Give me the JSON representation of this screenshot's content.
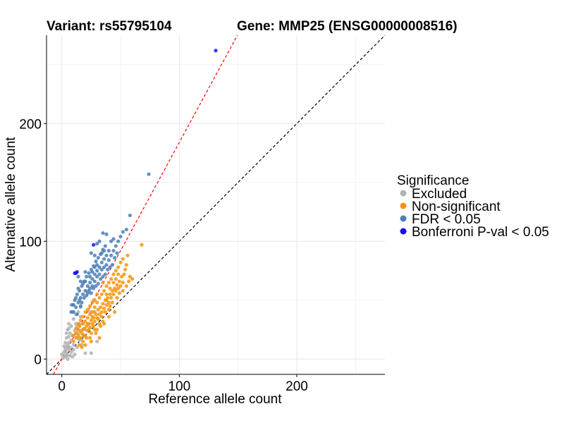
{
  "chart_data": {
    "type": "scatter",
    "title_left": "Variant: rs55795104",
    "title_right": "Gene: MMP25 (ENSG00000008516)",
    "xlabel": "Reference allele count",
    "ylabel": "Alternative allele count",
    "xlim": [
      -13,
      275
    ],
    "ylim": [
      -13,
      275
    ],
    "x_ticks": [
      0,
      100,
      200
    ],
    "y_ticks": [
      0,
      100,
      200
    ],
    "x_tick_labels": [
      "0",
      "100",
      "200"
    ],
    "y_tick_labels": [
      "0",
      "100",
      "200"
    ],
    "grid": true,
    "legend": {
      "title": "Significance",
      "position": "right",
      "entries": [
        {
          "label": "Excluded",
          "color": "#b3b3b3"
        },
        {
          "label": "Non-significant",
          "color": "#f7940c"
        },
        {
          "label": "FDR < 0.05",
          "color": "#4a7fb5"
        },
        {
          "label": "Bonferroni P-val < 0.05",
          "color": "#1010ee"
        }
      ]
    },
    "reference_lines": [
      {
        "name": "identity",
        "slope": 1,
        "intercept": 0,
        "color": "#000000",
        "style": "dashed"
      },
      {
        "name": "fitted-ratio",
        "slope": 1.84,
        "intercept": 0,
        "color": "#ff0000",
        "style": "dashed"
      }
    ],
    "series": [
      {
        "name": "Excluded",
        "color": "#b3b3b3",
        "points": [
          [
            2,
            3
          ],
          [
            3,
            2
          ],
          [
            4,
            5
          ],
          [
            5,
            3
          ],
          [
            6,
            8
          ],
          [
            2,
            6
          ],
          [
            7,
            10
          ],
          [
            8,
            6
          ],
          [
            3,
            9
          ],
          [
            5,
            12
          ],
          [
            6,
            14
          ],
          [
            4,
            18
          ],
          [
            8,
            16
          ],
          [
            10,
            12
          ],
          [
            9,
            20
          ],
          [
            7,
            22
          ],
          [
            5,
            25
          ],
          [
            12,
            18
          ],
          [
            11,
            24
          ],
          [
            13,
            28
          ],
          [
            6,
            30
          ],
          [
            8,
            28
          ],
          [
            10,
            34
          ],
          [
            14,
            22
          ],
          [
            15,
            30
          ],
          [
            9,
            40
          ],
          [
            12,
            38
          ],
          [
            16,
            36
          ],
          [
            4,
            10
          ],
          [
            1,
            1
          ],
          [
            0,
            4
          ],
          [
            3,
            14
          ],
          [
            2,
            11
          ],
          [
            6,
            19
          ],
          [
            10,
            8
          ],
          [
            13,
            10
          ],
          [
            15,
            16
          ],
          [
            18,
            20
          ],
          [
            11,
            4
          ],
          [
            7,
            3
          ],
          [
            5,
            0
          ],
          [
            9,
            2
          ],
          [
            17,
            12
          ],
          [
            4,
            22
          ],
          [
            6,
            26
          ],
          [
            8,
            46
          ],
          [
            3,
            7
          ],
          [
            12,
            30
          ],
          [
            14,
            40
          ],
          [
            16,
            44
          ],
          [
            18,
            30
          ],
          [
            20,
            25
          ],
          [
            24,
            40
          ],
          [
            27,
            50
          ],
          [
            30,
            15
          ],
          [
            25,
            5
          ],
          [
            20,
            5
          ]
        ]
      },
      {
        "name": "Non-significant",
        "color": "#f7940c",
        "points": [
          [
            10,
            20
          ],
          [
            12,
            22
          ],
          [
            14,
            25
          ],
          [
            15,
            28
          ],
          [
            16,
            24
          ],
          [
            18,
            30
          ],
          [
            20,
            32
          ],
          [
            22,
            35
          ],
          [
            24,
            38
          ],
          [
            26,
            40
          ],
          [
            28,
            44
          ],
          [
            30,
            48
          ],
          [
            32,
            52
          ],
          [
            34,
            55
          ],
          [
            36,
            58
          ],
          [
            38,
            62
          ],
          [
            40,
            65
          ],
          [
            42,
            68
          ],
          [
            44,
            72
          ],
          [
            46,
            75
          ],
          [
            48,
            78
          ],
          [
            50,
            82
          ],
          [
            52,
            85
          ],
          [
            55,
            80
          ],
          [
            56,
            88
          ],
          [
            58,
            70
          ],
          [
            60,
            68
          ],
          [
            68,
            97
          ],
          [
            13,
            18
          ],
          [
            17,
            22
          ],
          [
            19,
            26
          ],
          [
            21,
            28
          ],
          [
            23,
            30
          ],
          [
            25,
            33
          ],
          [
            27,
            35
          ],
          [
            29,
            38
          ],
          [
            31,
            42
          ],
          [
            33,
            44
          ],
          [
            35,
            47
          ],
          [
            37,
            50
          ],
          [
            39,
            52
          ],
          [
            41,
            55
          ],
          [
            43,
            58
          ],
          [
            45,
            60
          ],
          [
            47,
            63
          ],
          [
            49,
            66
          ],
          [
            51,
            70
          ],
          [
            53,
            72
          ],
          [
            54,
            76
          ],
          [
            57,
            66
          ],
          [
            20,
            20
          ],
          [
            22,
            24
          ],
          [
            24,
            27
          ],
          [
            26,
            30
          ],
          [
            28,
            32
          ],
          [
            30,
            35
          ],
          [
            32,
            38
          ],
          [
            34,
            40
          ],
          [
            36,
            43
          ],
          [
            38,
            46
          ],
          [
            40,
            48
          ],
          [
            42,
            52
          ],
          [
            44,
            55
          ],
          [
            46,
            58
          ],
          [
            48,
            60
          ],
          [
            50,
            62
          ],
          [
            52,
            65
          ],
          [
            18,
            15
          ],
          [
            21,
            18
          ],
          [
            25,
            22
          ],
          [
            28,
            25
          ],
          [
            32,
            30
          ],
          [
            35,
            32
          ],
          [
            40,
            36
          ],
          [
            45,
            40
          ],
          [
            12,
            26
          ],
          [
            14,
            30
          ],
          [
            16,
            33
          ],
          [
            18,
            36
          ],
          [
            20,
            40
          ],
          [
            22,
            42
          ],
          [
            24,
            45
          ],
          [
            26,
            48
          ],
          [
            28,
            50
          ],
          [
            30,
            55
          ],
          [
            15,
            12
          ],
          [
            16,
            18
          ],
          [
            19,
            20
          ],
          [
            23,
            25
          ],
          [
            27,
            28
          ],
          [
            31,
            34
          ],
          [
            34,
            36
          ],
          [
            37,
            40
          ],
          [
            41,
            45
          ],
          [
            43,
            48
          ],
          [
            47,
            52
          ],
          [
            49,
            56
          ],
          [
            52,
            58
          ],
          [
            55,
            62
          ],
          [
            17,
            10
          ],
          [
            25,
            15
          ],
          [
            32,
            18
          ],
          [
            30,
            25
          ],
          [
            36,
            30
          ],
          [
            40,
            42
          ],
          [
            26,
            36
          ],
          [
            22,
            30
          ],
          [
            18,
            25
          ],
          [
            14,
            20
          ],
          [
            10,
            15
          ],
          [
            35,
            65
          ],
          [
            38,
            55
          ],
          [
            44,
            65
          ],
          [
            48,
            72
          ],
          [
            41,
            60
          ],
          [
            46,
            68
          ],
          [
            33,
            28
          ],
          [
            29,
            22
          ],
          [
            24,
            18
          ],
          [
            20,
            12
          ],
          [
            28,
            40
          ],
          [
            38,
            50
          ]
        ]
      },
      {
        "name": "FDR < 0.05",
        "color": "#4a7fb5",
        "points": [
          [
            10,
            40
          ],
          [
            12,
            44
          ],
          [
            14,
            48
          ],
          [
            16,
            52
          ],
          [
            18,
            55
          ],
          [
            20,
            58
          ],
          [
            22,
            62
          ],
          [
            24,
            65
          ],
          [
            26,
            68
          ],
          [
            28,
            72
          ],
          [
            30,
            75
          ],
          [
            32,
            78
          ],
          [
            34,
            82
          ],
          [
            36,
            85
          ],
          [
            38,
            88
          ],
          [
            40,
            92
          ],
          [
            13,
            55
          ],
          [
            15,
            58
          ],
          [
            17,
            62
          ],
          [
            19,
            66
          ],
          [
            21,
            70
          ],
          [
            23,
            73
          ],
          [
            25,
            76
          ],
          [
            27,
            79
          ],
          [
            29,
            83
          ],
          [
            31,
            86
          ],
          [
            33,
            89
          ],
          [
            35,
            93
          ],
          [
            37,
            96
          ],
          [
            11,
            50
          ],
          [
            9,
            46
          ],
          [
            14,
            60
          ],
          [
            18,
            64
          ],
          [
            20,
            66
          ],
          [
            22,
            56
          ],
          [
            24,
            60
          ],
          [
            26,
            62
          ],
          [
            28,
            66
          ],
          [
            30,
            70
          ],
          [
            32,
            72
          ],
          [
            34,
            76
          ],
          [
            36,
            78
          ],
          [
            38,
            80
          ],
          [
            40,
            84
          ],
          [
            42,
            88
          ],
          [
            44,
            92
          ],
          [
            46,
            96
          ],
          [
            48,
            100
          ],
          [
            50,
            104
          ],
          [
            52,
            108
          ],
          [
            55,
            110
          ],
          [
            58,
            122
          ],
          [
            74,
            157
          ],
          [
            35,
            107
          ],
          [
            38,
            106
          ],
          [
            32,
            100
          ],
          [
            30,
            98
          ],
          [
            25,
            90
          ],
          [
            28,
            88
          ],
          [
            20,
            74
          ],
          [
            16,
            66
          ],
          [
            12,
            52
          ],
          [
            8,
            40
          ],
          [
            10,
            46
          ],
          [
            15,
            50
          ],
          [
            17,
            48
          ],
          [
            19,
            52
          ],
          [
            21,
            54
          ],
          [
            23,
            58
          ],
          [
            25,
            56
          ],
          [
            27,
            60
          ],
          [
            29,
            62
          ],
          [
            31,
            64
          ],
          [
            33,
            68
          ],
          [
            35,
            70
          ],
          [
            37,
            72
          ],
          [
            39,
            76
          ],
          [
            41,
            78
          ],
          [
            43,
            80
          ],
          [
            45,
            86
          ],
          [
            47,
            90
          ],
          [
            14,
            70
          ],
          [
            16,
            45
          ],
          [
            13,
            38
          ],
          [
            24,
            70
          ],
          [
            26,
            74
          ],
          [
            28,
            78
          ],
          [
            30,
            80
          ],
          [
            34,
            90
          ],
          [
            36,
            92
          ],
          [
            42,
            100
          ],
          [
            44,
            102
          ]
        ]
      },
      {
        "name": "Bonferroni P-val < 0.05",
        "color": "#1010ee",
        "points": [
          [
            131,
            262
          ],
          [
            27,
            97
          ],
          [
            12,
            73
          ],
          [
            13,
            74
          ],
          [
            11,
            73
          ]
        ]
      }
    ]
  }
}
